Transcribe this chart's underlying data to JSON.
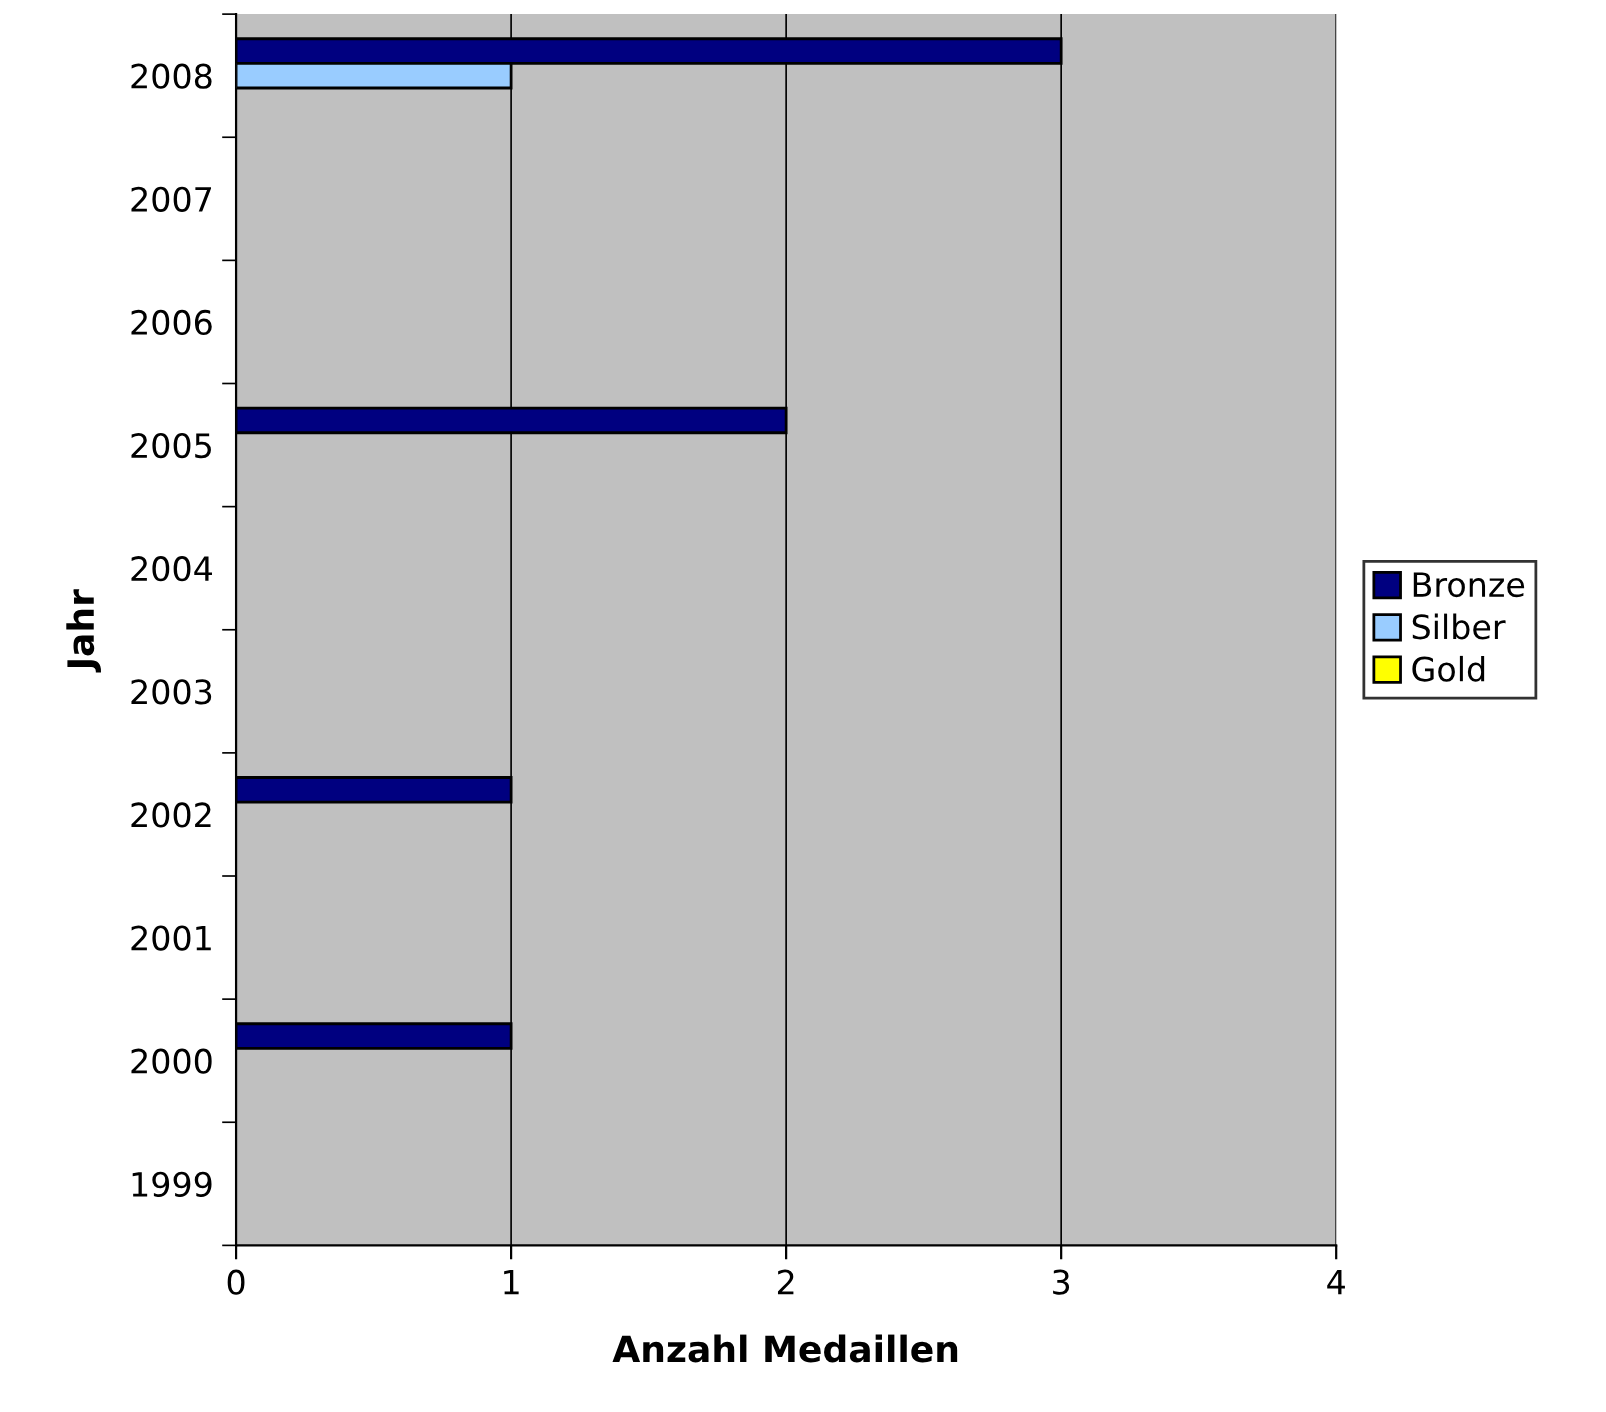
{
  "chart_data": {
    "type": "bar",
    "orientation": "horizontal",
    "xlabel": "Anzahl Medaillen",
    "ylabel": "Jahr",
    "categories": [
      "2008",
      "2007",
      "2006",
      "2005",
      "2004",
      "2003",
      "2002",
      "2001",
      "2000",
      "1999"
    ],
    "series": [
      {
        "name": "Bronze",
        "color": "#000080",
        "values": [
          3,
          null,
          null,
          2,
          null,
          null,
          1,
          null,
          1,
          null
        ]
      },
      {
        "name": "Silber",
        "color": "#99ccff",
        "values": [
          1,
          null,
          null,
          null,
          null,
          null,
          null,
          null,
          null,
          null
        ]
      },
      {
        "name": "Gold",
        "color": "#ffff00",
        "values": [
          null,
          null,
          null,
          null,
          null,
          null,
          null,
          null,
          null,
          null
        ]
      }
    ],
    "xlim": [
      0,
      4
    ],
    "xticks": [
      0,
      1,
      2,
      3,
      4
    ],
    "grid": "x",
    "legend": "right"
  }
}
